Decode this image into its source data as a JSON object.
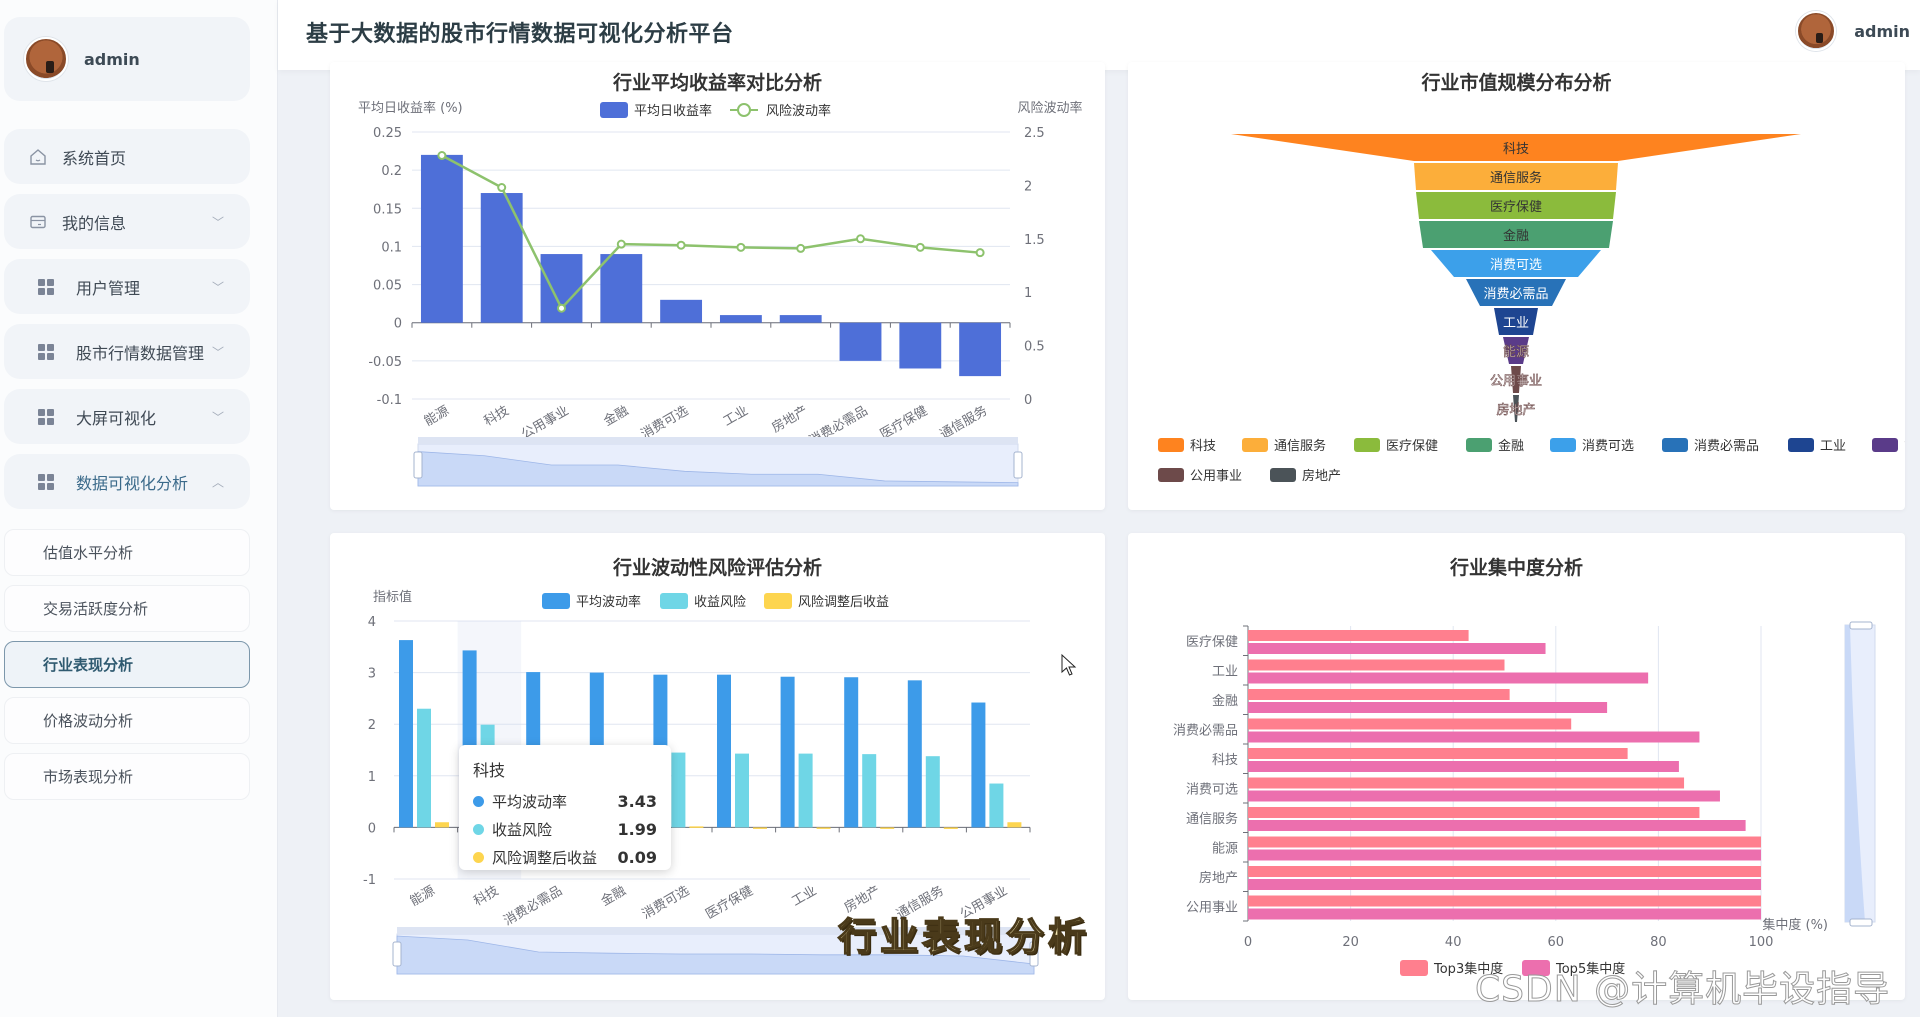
{
  "sidebar": {
    "user": {
      "name": "admin"
    },
    "menu": [
      {
        "label": "系统首页",
        "icon": "home-icon",
        "has_chevron": false
      },
      {
        "label": "我的信息",
        "icon": "card-icon",
        "has_chevron": true,
        "chevron": "down"
      },
      {
        "label": "用户管理",
        "icon": "grid-icon",
        "has_chevron": true,
        "chevron": "down"
      },
      {
        "label": "股市行情数据管理",
        "icon": "grid-icon",
        "has_chevron": true,
        "chevron": "down"
      },
      {
        "label": "大屏可视化",
        "icon": "grid-icon",
        "has_chevron": true,
        "chevron": "down"
      },
      {
        "label": "数据可视化分析",
        "icon": "grid-icon",
        "has_chevron": true,
        "chevron": "up",
        "open": true
      }
    ],
    "submenu": [
      {
        "label": "估值水平分析",
        "active": false
      },
      {
        "label": "交易活跃度分析",
        "active": false
      },
      {
        "label": "行业表现分析",
        "active": true
      },
      {
        "label": "价格波动分析",
        "active": false
      },
      {
        "label": "市场表现分析",
        "active": false
      }
    ]
  },
  "header": {
    "title": "基于大数据的股市行情数据可视化分析平台",
    "user_name": "admin"
  },
  "colors": {
    "bar_blue": "#4e6fd8",
    "line_green": "#8dc26d",
    "vol_blue": "#3d9be9",
    "vol_cyan": "#6fd6e6",
    "vol_yellow": "#fdd54f",
    "top3": "#ff7f8e",
    "top5": "#ec6fae"
  },
  "overlay": {
    "caption": "行业表现分析",
    "watermark": "CSDN @计算机毕设指导师"
  },
  "tooltip": {
    "title": "科技",
    "rows": [
      {
        "label": "平均波动率",
        "value": "3.43",
        "color": "#3d9be9"
      },
      {
        "label": "收益风险",
        "value": "1.99",
        "color": "#6fd6e6"
      },
      {
        "label": "风险调整后收益",
        "value": "0.09",
        "color": "#fdd54f"
      }
    ]
  },
  "chart_data": [
    {
      "id": "return_comparison",
      "type": "bar",
      "title": "行业平均收益率对比分析",
      "ylabel": "平均日收益率 (%)",
      "ylabel_right": "风险波动率",
      "categories": [
        "能源",
        "科技",
        "公用事业",
        "金融",
        "消费可选",
        "工业",
        "房地产",
        "消费必需品",
        "医疗保健",
        "通信服务"
      ],
      "series": [
        {
          "name": "平均日收益率",
          "type": "bar",
          "axis": "left",
          "values": [
            0.22,
            0.17,
            0.09,
            0.09,
            0.03,
            0.01,
            0.01,
            -0.05,
            -0.06,
            -0.07
          ]
        },
        {
          "name": "风险波动率",
          "type": "line",
          "axis": "right",
          "values": [
            2.28,
            1.98,
            0.85,
            1.45,
            1.44,
            1.42,
            1.41,
            1.5,
            1.42,
            1.37
          ]
        }
      ],
      "ylim": [
        -0.1,
        0.25
      ],
      "yticks": [
        0.25,
        0.2,
        0.15,
        0.1,
        0.05,
        0,
        -0.05,
        -0.1
      ],
      "ylim_right": [
        0,
        2.5
      ],
      "yticks_right": [
        2.5,
        2,
        1.5,
        1,
        0.5,
        0
      ],
      "legend_position": "top",
      "grid": true,
      "datazoom": true
    },
    {
      "id": "market_cap_funnel",
      "type": "funnel",
      "title": "行业市值规模分布分析",
      "categories": [
        "科技",
        "通信服务",
        "医疗保健",
        "金融",
        "消费可选",
        "消费必需品",
        "工业",
        "能源",
        "公用事业",
        "房地产"
      ],
      "colors": [
        "#fe831f",
        "#fcae3a",
        "#8bbb3c",
        "#4ba071",
        "#3ca0ea",
        "#2872b8",
        "#1e4591",
        "#5a3b89",
        "#6d4a4a",
        "#4b5358"
      ],
      "legend_position": "bottom"
    },
    {
      "id": "volatility_risk",
      "type": "bar",
      "title": "行业波动性风险评估分析",
      "ylabel": "指标值",
      "categories": [
        "能源",
        "科技",
        "消费必需品",
        "金融",
        "消费可选",
        "医疗保健",
        "工业",
        "房地产",
        "通信服务",
        "公用事业"
      ],
      "series": [
        {
          "name": "平均波动率",
          "values": [
            3.63,
            3.43,
            3.01,
            3.0,
            2.96,
            2.96,
            2.92,
            2.91,
            2.85,
            2.42
          ]
        },
        {
          "name": "收益风险",
          "values": [
            2.3,
            1.99,
            1.5,
            1.48,
            1.45,
            1.43,
            1.43,
            1.42,
            1.38,
            0.85
          ]
        },
        {
          "name": "风险调整后收益",
          "values": [
            0.1,
            0.09,
            0.03,
            0.03,
            0.02,
            -0.02,
            0.0,
            0.0,
            -0.03,
            0.1
          ]
        }
      ],
      "ylim": [
        -1,
        4
      ],
      "yticks": [
        4,
        3,
        2,
        1,
        0,
        -1
      ],
      "legend_position": "top",
      "grid": true,
      "datazoom": true,
      "highlighted_category": "科技"
    },
    {
      "id": "concentration",
      "type": "bar",
      "orientation": "horizontal",
      "title": "行业集中度分析",
      "xlabel": "集中度 (%)",
      "categories": [
        "医疗保健",
        "工业",
        "金融",
        "消费必需品",
        "科技",
        "消费可选",
        "通信服务",
        "能源",
        "房地产",
        "公用事业"
      ],
      "series": [
        {
          "name": "Top3集中度",
          "values": [
            43,
            50,
            51,
            63,
            74,
            85,
            88,
            100,
            100,
            100
          ]
        },
        {
          "name": "Top5集中度",
          "values": [
            58,
            78,
            70,
            88,
            84,
            92,
            97,
            100,
            100,
            100
          ]
        }
      ],
      "xlim": [
        0,
        100
      ],
      "xticks": [
        0,
        20,
        40,
        60,
        80,
        100
      ],
      "legend_position": "bottom",
      "datazoom": true
    }
  ]
}
